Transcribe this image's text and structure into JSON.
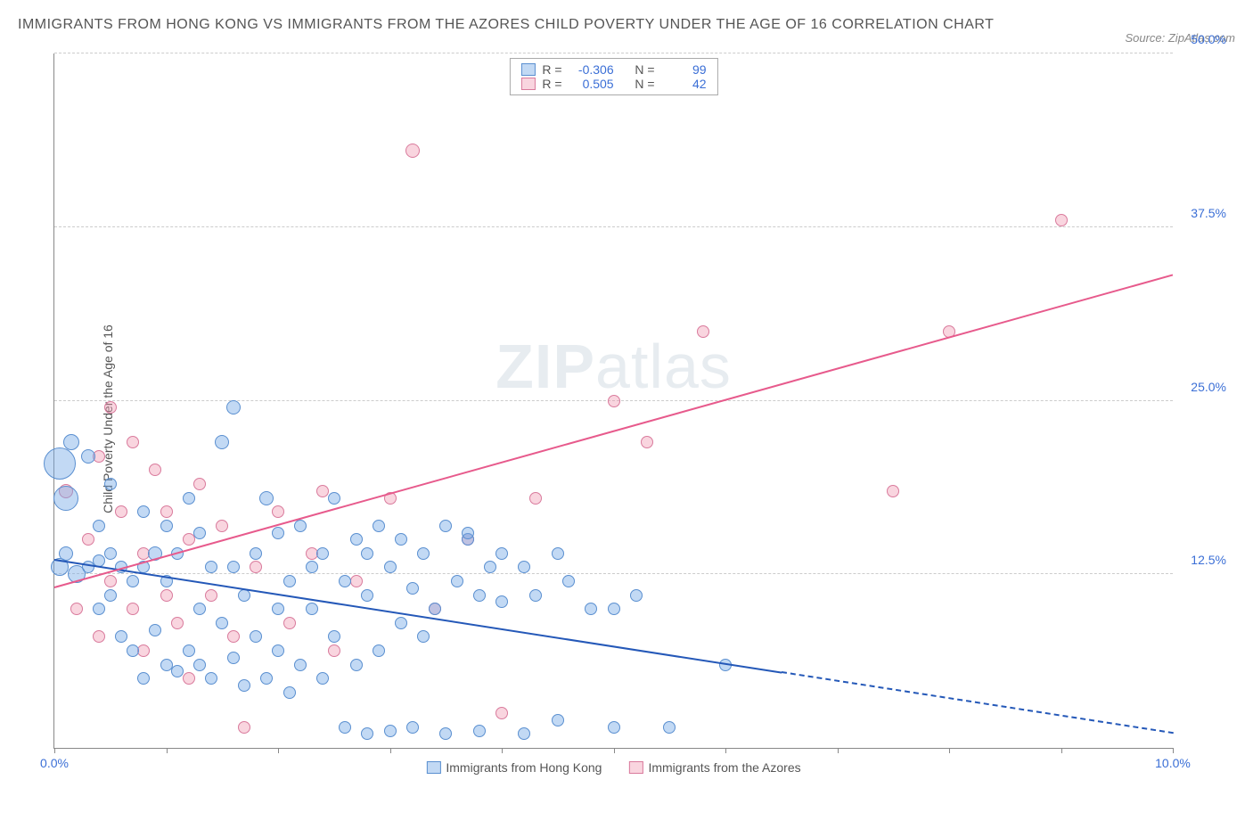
{
  "title": "IMMIGRANTS FROM HONG KONG VS IMMIGRANTS FROM THE AZORES CHILD POVERTY UNDER THE AGE OF 16 CORRELATION CHART",
  "source": "Source: ZipAtlas.com",
  "watermark_a": "ZIP",
  "watermark_b": "atlas",
  "y_axis_label": "Child Poverty Under the Age of 16",
  "chart": {
    "type": "scatter",
    "background_color": "#ffffff",
    "grid_color": "#cccccc",
    "xlim": [
      0,
      10
    ],
    "ylim": [
      0,
      50
    ],
    "x_ticks": [
      0,
      1,
      2,
      3,
      4,
      5,
      6,
      7,
      8,
      9,
      10
    ],
    "x_tick_labels": {
      "0": "0.0%",
      "10": "10.0%"
    },
    "y_ticks": [
      12.5,
      25.0,
      37.5,
      50.0
    ],
    "y_tick_labels": [
      "12.5%",
      "25.0%",
      "37.5%",
      "50.0%"
    ],
    "series_a": {
      "name": "Immigrants from Hong Kong",
      "color_fill": "rgba(120,170,230,0.45)",
      "color_stroke": "#5a8fd0",
      "R": "-0.306",
      "N": "99",
      "trend": {
        "x1": 0,
        "y1": 13.5,
        "x2": 10,
        "y2": 1.0,
        "solid_until_x": 6.5,
        "color": "#2458b8"
      },
      "points": [
        {
          "x": 0.05,
          "y": 20.5,
          "r": 18
        },
        {
          "x": 0.1,
          "y": 18,
          "r": 14
        },
        {
          "x": 0.05,
          "y": 13,
          "r": 10
        },
        {
          "x": 0.1,
          "y": 14,
          "r": 8
        },
        {
          "x": 0.2,
          "y": 12.5,
          "r": 10
        },
        {
          "x": 0.15,
          "y": 22,
          "r": 9
        },
        {
          "x": 0.3,
          "y": 13,
          "r": 7
        },
        {
          "x": 0.4,
          "y": 13.5,
          "r": 7
        },
        {
          "x": 0.4,
          "y": 10,
          "r": 7
        },
        {
          "x": 0.5,
          "y": 14,
          "r": 7
        },
        {
          "x": 0.5,
          "y": 11,
          "r": 7
        },
        {
          "x": 0.6,
          "y": 13,
          "r": 7
        },
        {
          "x": 0.6,
          "y": 8,
          "r": 7
        },
        {
          "x": 0.7,
          "y": 12,
          "r": 7
        },
        {
          "x": 0.7,
          "y": 7,
          "r": 7
        },
        {
          "x": 0.8,
          "y": 13,
          "r": 7
        },
        {
          "x": 0.8,
          "y": 5,
          "r": 7
        },
        {
          "x": 0.9,
          "y": 14,
          "r": 8
        },
        {
          "x": 0.9,
          "y": 8.5,
          "r": 7
        },
        {
          "x": 1.0,
          "y": 12,
          "r": 7
        },
        {
          "x": 1.0,
          "y": 6,
          "r": 7
        },
        {
          "x": 1.1,
          "y": 14,
          "r": 7
        },
        {
          "x": 1.1,
          "y": 5.5,
          "r": 7
        },
        {
          "x": 1.2,
          "y": 7,
          "r": 7
        },
        {
          "x": 1.3,
          "y": 10,
          "r": 7
        },
        {
          "x": 1.3,
          "y": 6,
          "r": 7
        },
        {
          "x": 1.4,
          "y": 13,
          "r": 7
        },
        {
          "x": 1.4,
          "y": 5,
          "r": 7
        },
        {
          "x": 1.5,
          "y": 22,
          "r": 8
        },
        {
          "x": 1.5,
          "y": 9,
          "r": 7
        },
        {
          "x": 1.6,
          "y": 24.5,
          "r": 8
        },
        {
          "x": 1.6,
          "y": 6.5,
          "r": 7
        },
        {
          "x": 1.7,
          "y": 11,
          "r": 7
        },
        {
          "x": 1.7,
          "y": 4.5,
          "r": 7
        },
        {
          "x": 1.8,
          "y": 14,
          "r": 7
        },
        {
          "x": 1.8,
          "y": 8,
          "r": 7
        },
        {
          "x": 1.9,
          "y": 18,
          "r": 8
        },
        {
          "x": 1.9,
          "y": 5,
          "r": 7
        },
        {
          "x": 2.0,
          "y": 15.5,
          "r": 7
        },
        {
          "x": 2.0,
          "y": 7,
          "r": 7
        },
        {
          "x": 2.1,
          "y": 12,
          "r": 7
        },
        {
          "x": 2.1,
          "y": 4,
          "r": 7
        },
        {
          "x": 2.2,
          "y": 16,
          "r": 7
        },
        {
          "x": 2.2,
          "y": 6,
          "r": 7
        },
        {
          "x": 2.3,
          "y": 10,
          "r": 7
        },
        {
          "x": 2.4,
          "y": 14,
          "r": 7
        },
        {
          "x": 2.4,
          "y": 5,
          "r": 7
        },
        {
          "x": 2.5,
          "y": 18,
          "r": 7
        },
        {
          "x": 2.5,
          "y": 8,
          "r": 7
        },
        {
          "x": 2.6,
          "y": 12,
          "r": 7
        },
        {
          "x": 2.6,
          "y": 1.5,
          "r": 7
        },
        {
          "x": 2.7,
          "y": 15,
          "r": 7
        },
        {
          "x": 2.7,
          "y": 6,
          "r": 7
        },
        {
          "x": 2.8,
          "y": 11,
          "r": 7
        },
        {
          "x": 2.8,
          "y": 1,
          "r": 7
        },
        {
          "x": 2.9,
          "y": 16,
          "r": 7
        },
        {
          "x": 2.9,
          "y": 7,
          "r": 7
        },
        {
          "x": 3.0,
          "y": 13,
          "r": 7
        },
        {
          "x": 3.0,
          "y": 1.2,
          "r": 7
        },
        {
          "x": 3.1,
          "y": 15,
          "r": 7
        },
        {
          "x": 3.1,
          "y": 9,
          "r": 7
        },
        {
          "x": 3.2,
          "y": 11.5,
          "r": 7
        },
        {
          "x": 3.2,
          "y": 1.5,
          "r": 7
        },
        {
          "x": 3.3,
          "y": 14,
          "r": 7
        },
        {
          "x": 3.4,
          "y": 10,
          "r": 7
        },
        {
          "x": 3.5,
          "y": 16,
          "r": 7
        },
        {
          "x": 3.5,
          "y": 1,
          "r": 7
        },
        {
          "x": 3.6,
          "y": 12,
          "r": 7
        },
        {
          "x": 3.7,
          "y": 15,
          "r": 7
        },
        {
          "x": 3.7,
          "y": 15.5,
          "r": 7
        },
        {
          "x": 3.8,
          "y": 11,
          "r": 7
        },
        {
          "x": 3.8,
          "y": 1.2,
          "r": 7
        },
        {
          "x": 4.0,
          "y": 14,
          "r": 7
        },
        {
          "x": 4.0,
          "y": 10.5,
          "r": 7
        },
        {
          "x": 4.2,
          "y": 13,
          "r": 7
        },
        {
          "x": 4.2,
          "y": 1,
          "r": 7
        },
        {
          "x": 4.3,
          "y": 11,
          "r": 7
        },
        {
          "x": 4.5,
          "y": 14,
          "r": 7
        },
        {
          "x": 4.5,
          "y": 2,
          "r": 7
        },
        {
          "x": 4.8,
          "y": 10,
          "r": 7
        },
        {
          "x": 5.0,
          "y": 1.5,
          "r": 7
        },
        {
          "x": 5.2,
          "y": 11,
          "r": 7
        },
        {
          "x": 5.5,
          "y": 1.5,
          "r": 7
        },
        {
          "x": 6.0,
          "y": 6,
          "r": 7
        },
        {
          "x": 0.3,
          "y": 21,
          "r": 8
        },
        {
          "x": 0.4,
          "y": 16,
          "r": 7
        },
        {
          "x": 0.5,
          "y": 19,
          "r": 7
        },
        {
          "x": 0.8,
          "y": 17,
          "r": 7
        },
        {
          "x": 1.0,
          "y": 16,
          "r": 7
        },
        {
          "x": 1.2,
          "y": 18,
          "r": 7
        },
        {
          "x": 1.3,
          "y": 15.5,
          "r": 7
        },
        {
          "x": 1.6,
          "y": 13,
          "r": 7
        },
        {
          "x": 2.0,
          "y": 10,
          "r": 7
        },
        {
          "x": 2.3,
          "y": 13,
          "r": 7
        },
        {
          "x": 2.8,
          "y": 14,
          "r": 7
        },
        {
          "x": 3.3,
          "y": 8,
          "r": 7
        },
        {
          "x": 3.9,
          "y": 13,
          "r": 7
        },
        {
          "x": 4.6,
          "y": 12,
          "r": 7
        },
        {
          "x": 5.0,
          "y": 10,
          "r": 7
        }
      ]
    },
    "series_b": {
      "name": "Immigrants from the Azores",
      "color_fill": "rgba(240,150,175,0.4)",
      "color_stroke": "#d97a9c",
      "R": "0.505",
      "N": "42",
      "trend": {
        "x1": 0,
        "y1": 11.5,
        "x2": 10,
        "y2": 34,
        "solid_until_x": 10,
        "color": "#e75a8c"
      },
      "points": [
        {
          "x": 0.1,
          "y": 18.5,
          "r": 8
        },
        {
          "x": 0.2,
          "y": 10,
          "r": 7
        },
        {
          "x": 0.3,
          "y": 15,
          "r": 7
        },
        {
          "x": 0.4,
          "y": 8,
          "r": 7
        },
        {
          "x": 0.4,
          "y": 21,
          "r": 7
        },
        {
          "x": 0.5,
          "y": 24.5,
          "r": 7
        },
        {
          "x": 0.5,
          "y": 12,
          "r": 7
        },
        {
          "x": 0.6,
          "y": 17,
          "r": 7
        },
        {
          "x": 0.7,
          "y": 10,
          "r": 7
        },
        {
          "x": 0.7,
          "y": 22,
          "r": 7
        },
        {
          "x": 0.8,
          "y": 14,
          "r": 7
        },
        {
          "x": 0.8,
          "y": 7,
          "r": 7
        },
        {
          "x": 0.9,
          "y": 20,
          "r": 7
        },
        {
          "x": 1.0,
          "y": 11,
          "r": 7
        },
        {
          "x": 1.0,
          "y": 17,
          "r": 7
        },
        {
          "x": 1.1,
          "y": 9,
          "r": 7
        },
        {
          "x": 1.2,
          "y": 15,
          "r": 7
        },
        {
          "x": 1.3,
          "y": 19,
          "r": 7
        },
        {
          "x": 1.4,
          "y": 11,
          "r": 7
        },
        {
          "x": 1.5,
          "y": 16,
          "r": 7
        },
        {
          "x": 1.6,
          "y": 8,
          "r": 7
        },
        {
          "x": 1.7,
          "y": 1.5,
          "r": 7
        },
        {
          "x": 1.8,
          "y": 13,
          "r": 7
        },
        {
          "x": 2.0,
          "y": 17,
          "r": 7
        },
        {
          "x": 2.1,
          "y": 9,
          "r": 7
        },
        {
          "x": 2.3,
          "y": 14,
          "r": 7
        },
        {
          "x": 2.4,
          "y": 18.5,
          "r": 7
        },
        {
          "x": 2.5,
          "y": 7,
          "r": 7
        },
        {
          "x": 2.7,
          "y": 12,
          "r": 7
        },
        {
          "x": 3.0,
          "y": 18,
          "r": 7
        },
        {
          "x": 3.2,
          "y": 43,
          "r": 8
        },
        {
          "x": 3.4,
          "y": 10,
          "r": 7
        },
        {
          "x": 3.7,
          "y": 15,
          "r": 7
        },
        {
          "x": 4.0,
          "y": 2.5,
          "r": 7
        },
        {
          "x": 4.3,
          "y": 18,
          "r": 7
        },
        {
          "x": 5.0,
          "y": 25,
          "r": 7
        },
        {
          "x": 5.3,
          "y": 22,
          "r": 7
        },
        {
          "x": 5.8,
          "y": 30,
          "r": 7
        },
        {
          "x": 7.5,
          "y": 18.5,
          "r": 7
        },
        {
          "x": 8.0,
          "y": 30,
          "r": 7
        },
        {
          "x": 9.0,
          "y": 38,
          "r": 7
        },
        {
          "x": 1.2,
          "y": 5,
          "r": 7
        }
      ]
    }
  }
}
